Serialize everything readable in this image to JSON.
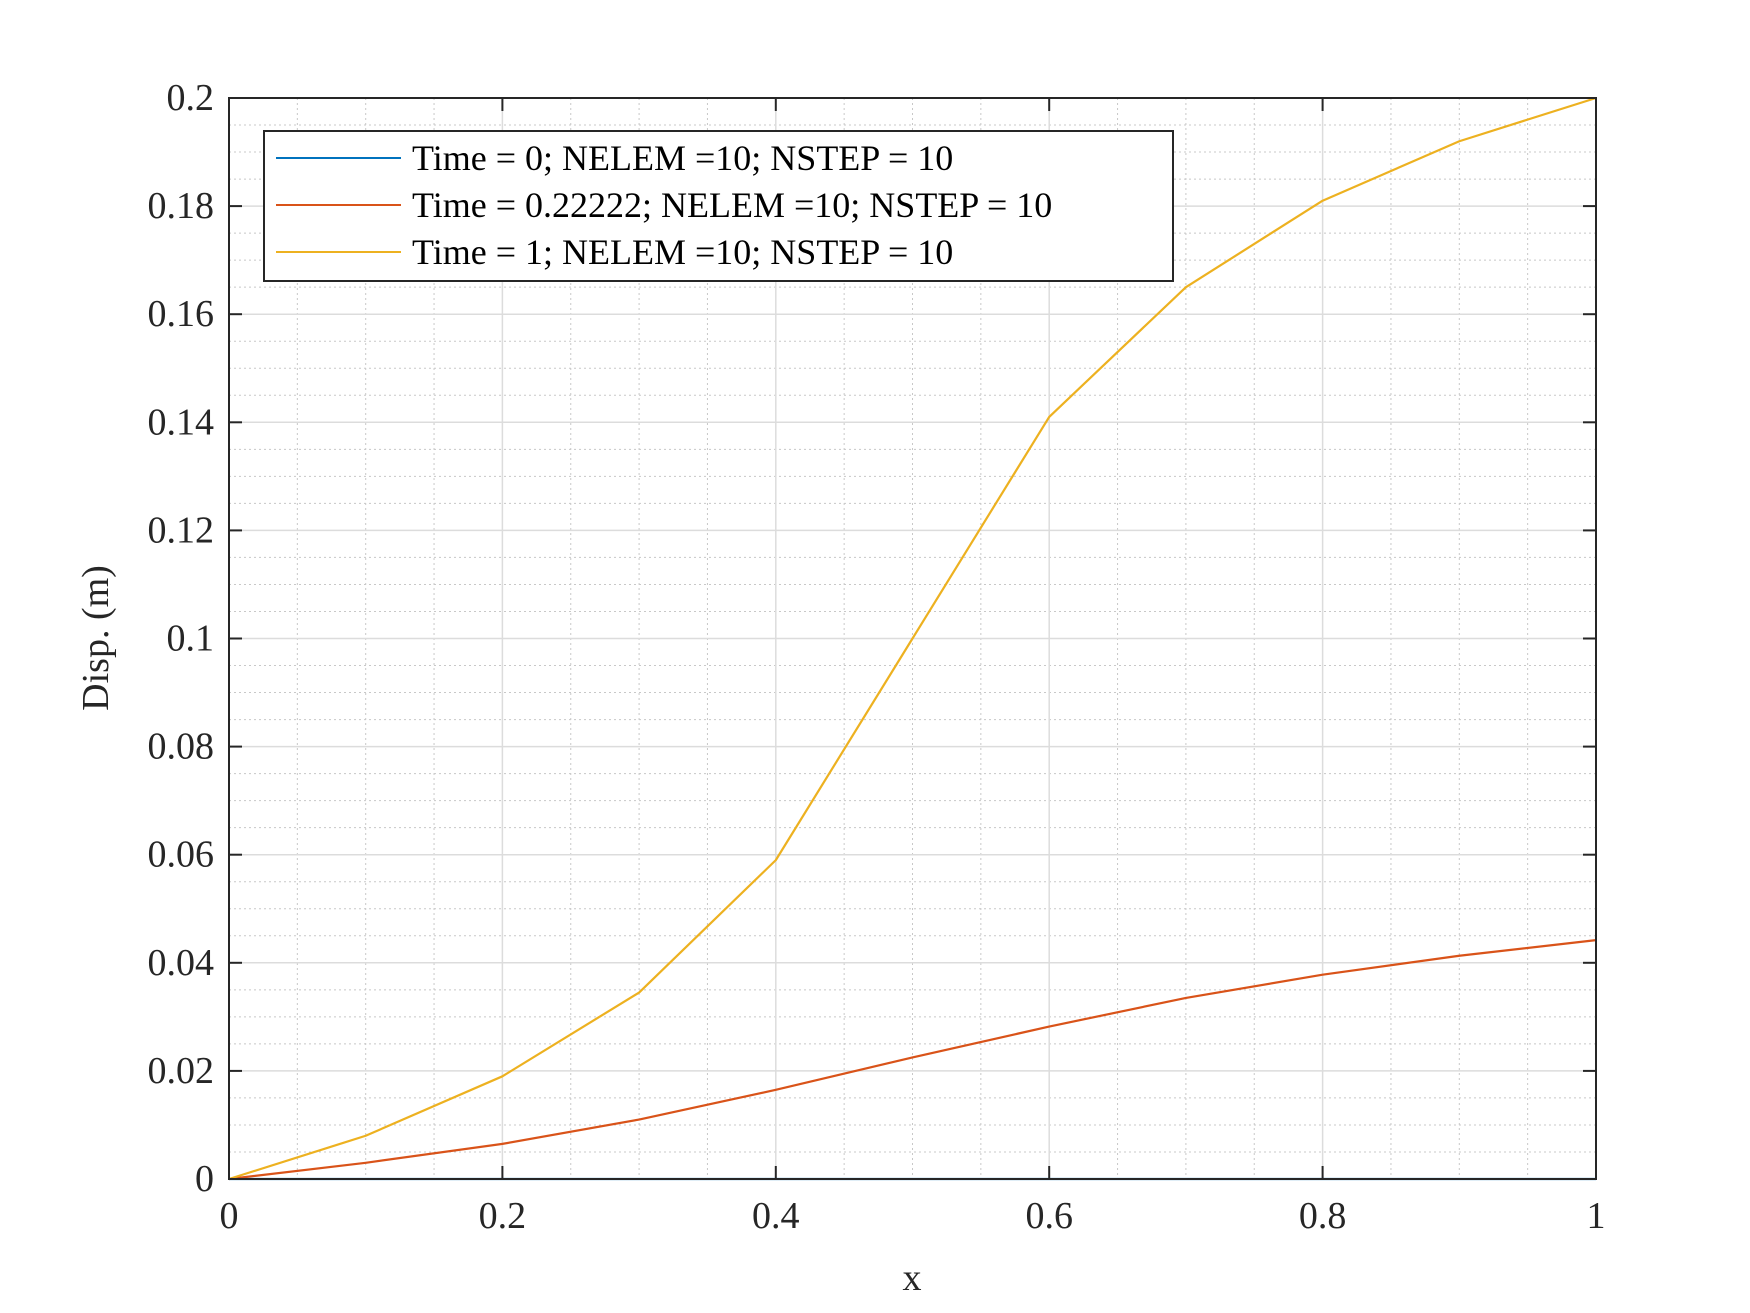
{
  "chart_data": {
    "type": "line",
    "title": "",
    "xlabel": "x",
    "ylabel": "Disp. (m)",
    "xlim": [
      0,
      1
    ],
    "ylim": [
      0,
      0.2
    ],
    "xticks": [
      0,
      0.2,
      0.4,
      0.6,
      0.8,
      1
    ],
    "xtick_labels": [
      "0",
      "0.2",
      "0.4",
      "0.6",
      "0.8",
      "1"
    ],
    "yticks": [
      0,
      0.02,
      0.04,
      0.06,
      0.08,
      0.1,
      0.12,
      0.14,
      0.16,
      0.18,
      0.2
    ],
    "ytick_labels": [
      "0",
      "0.02",
      "0.04",
      "0.06",
      "0.08",
      "0.1",
      "0.12",
      "0.14",
      "0.16",
      "0.18",
      "0.2"
    ],
    "grid": true,
    "minor_grid": true,
    "legend_position": "top-left",
    "x": [
      0,
      0.1,
      0.2,
      0.3,
      0.4,
      0.5,
      0.6,
      0.7,
      0.8,
      0.9,
      1
    ],
    "series": [
      {
        "name": "Time = 0; NELEM =10; NSTEP = 10",
        "color": "#0072BD",
        "values": [
          0,
          0,
          0,
          0,
          0,
          0,
          0,
          0,
          0,
          0,
          0
        ]
      },
      {
        "name": "Time = 0.22222; NELEM =10; NSTEP = 10",
        "color": "#D95319",
        "values": [
          0,
          0.003,
          0.0065,
          0.011,
          0.0165,
          0.0225,
          0.0282,
          0.0335,
          0.0378,
          0.0413,
          0.0442
        ]
      },
      {
        "name": "Time = 1; NELEM =10; NSTEP = 10",
        "color": "#EDB120",
        "values": [
          0,
          0.008,
          0.019,
          0.0345,
          0.059,
          0.1,
          0.141,
          0.165,
          0.181,
          0.192,
          0.2
        ]
      }
    ]
  }
}
